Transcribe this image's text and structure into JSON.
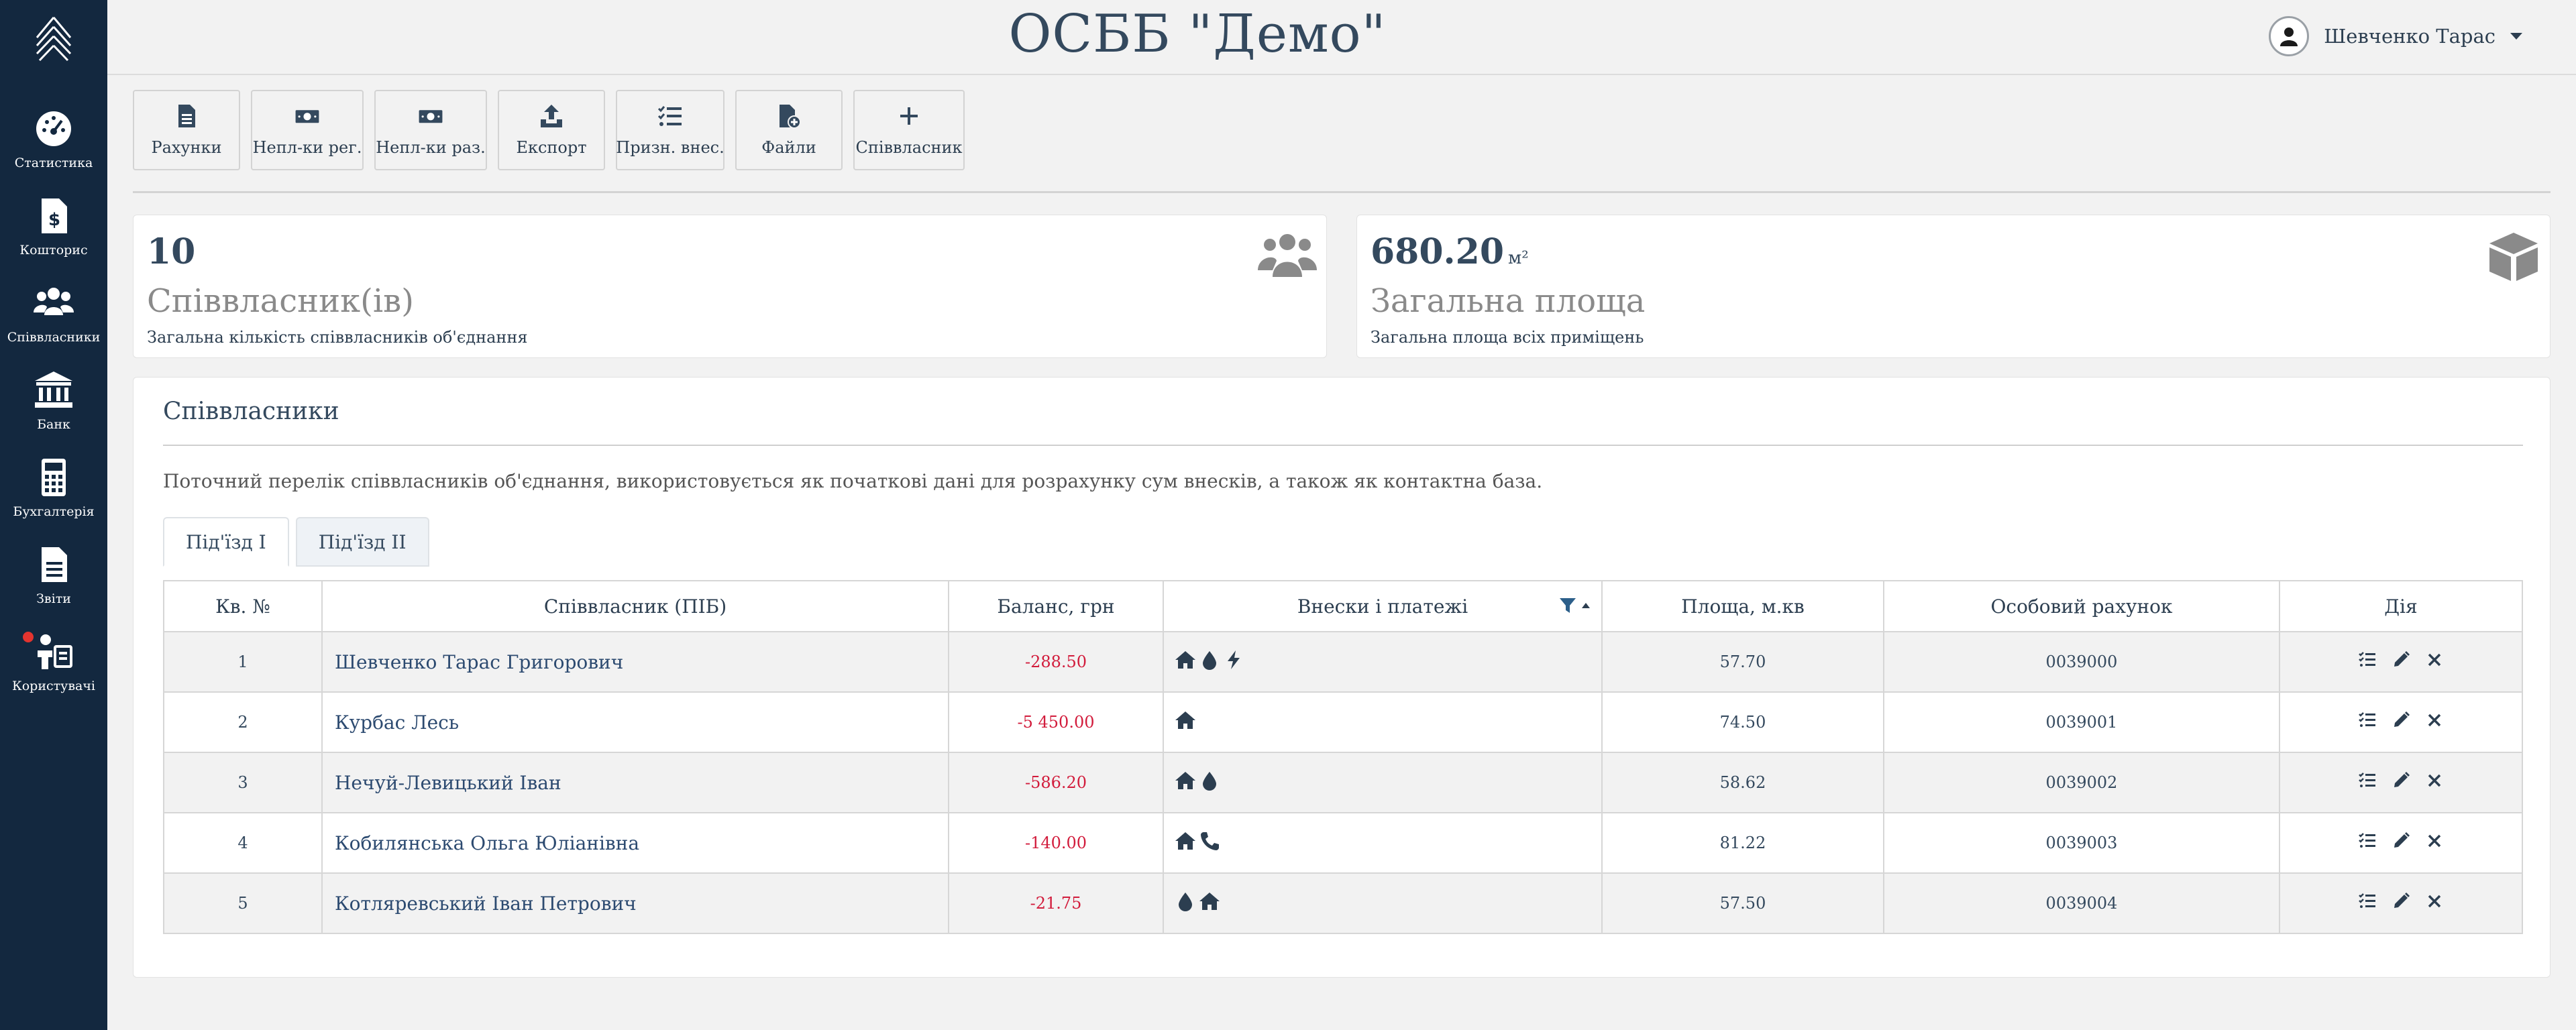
{
  "app": {
    "title": "ОСББ \"Демо\""
  },
  "user": {
    "name": "Шевченко Тарас"
  },
  "sidebar": {
    "items": [
      {
        "label": "Статистика",
        "icon": "dashboard-icon"
      },
      {
        "label": "Кошторис",
        "icon": "budget-file-icon"
      },
      {
        "label": "Співвласники",
        "icon": "users-icon"
      },
      {
        "label": "Банк",
        "icon": "bank-icon"
      },
      {
        "label": "Бухгалтерія",
        "icon": "calculator-icon"
      },
      {
        "label": "Звіти",
        "icon": "report-file-icon"
      },
      {
        "label": "Користувачі",
        "icon": "user-admin-icon",
        "has_notification": true
      }
    ]
  },
  "toolbar": {
    "buttons": [
      {
        "label": "Рахунки",
        "icon": "invoice-icon"
      },
      {
        "label": "Непл-ки рег.",
        "icon": "money-icon"
      },
      {
        "label": "Непл-ки раз.",
        "icon": "money-icon"
      },
      {
        "label": "Експорт",
        "icon": "export-icon"
      },
      {
        "label": "Призн. внес.",
        "icon": "checklist-icon"
      },
      {
        "label": "Файли",
        "icon": "file-add-icon"
      },
      {
        "label": "Співвласник",
        "icon": "plus-icon"
      }
    ]
  },
  "stats": {
    "owners": {
      "value": "10",
      "title": "Співвласник(ів)",
      "subtitle": "Загальна кількість співвласників об'єднання",
      "icon": "users-icon"
    },
    "area": {
      "value": "680.20",
      "unit": "м²",
      "title": "Загальна площа",
      "subtitle": "Загальна площа всіх приміщень",
      "icon": "cube-icon"
    }
  },
  "panel": {
    "title": "Співвласники",
    "description": "Поточний перелік співвласників об'єднання, використовується як початкові дані для розрахунку сум внесків, а також як контактна база.",
    "tabs": [
      {
        "label": "Під'їзд І",
        "active": true
      },
      {
        "label": "Під'їзд ІІ",
        "active": false
      }
    ],
    "columns": [
      "Кв. №",
      "Співвласник (ПІБ)",
      "Баланс, грн",
      "Внески і платежі",
      "Площа, м.кв",
      "Особовий рахунок",
      "Дія"
    ],
    "rows": [
      {
        "apt": "1",
        "name": "Шевченко Тарас Григорович",
        "balance": "-288.50",
        "payments": [
          "home-icon",
          "water-drop-icon",
          "electricity-icon"
        ],
        "area": "57.70",
        "account": "0039000"
      },
      {
        "apt": "2",
        "name": "Курбас Лесь",
        "balance": "-5 450.00",
        "payments": [
          "home-icon"
        ],
        "area": "74.50",
        "account": "0039001"
      },
      {
        "apt": "3",
        "name": "Нечуй-Левицький Іван",
        "balance": "-586.20",
        "payments": [
          "home-icon",
          "water-drop-icon"
        ],
        "area": "58.62",
        "account": "0039002"
      },
      {
        "apt": "4",
        "name": "Кобилянська Ольга Юліанівна",
        "balance": "-140.00",
        "payments": [
          "home-icon",
          "phone-icon"
        ],
        "area": "81.22",
        "account": "0039003"
      },
      {
        "apt": "5",
        "name": "Котляревський Іван Петрович",
        "balance": "-21.75",
        "payments": [
          "water-drop-icon",
          "home-icon"
        ],
        "area": "57.50",
        "account": "0039004"
      }
    ]
  },
  "colors": {
    "sidebar": "#13283f",
    "text": "#2c3e50",
    "negative": "#d21c3c",
    "row_stripe": "#f2f2f2"
  }
}
